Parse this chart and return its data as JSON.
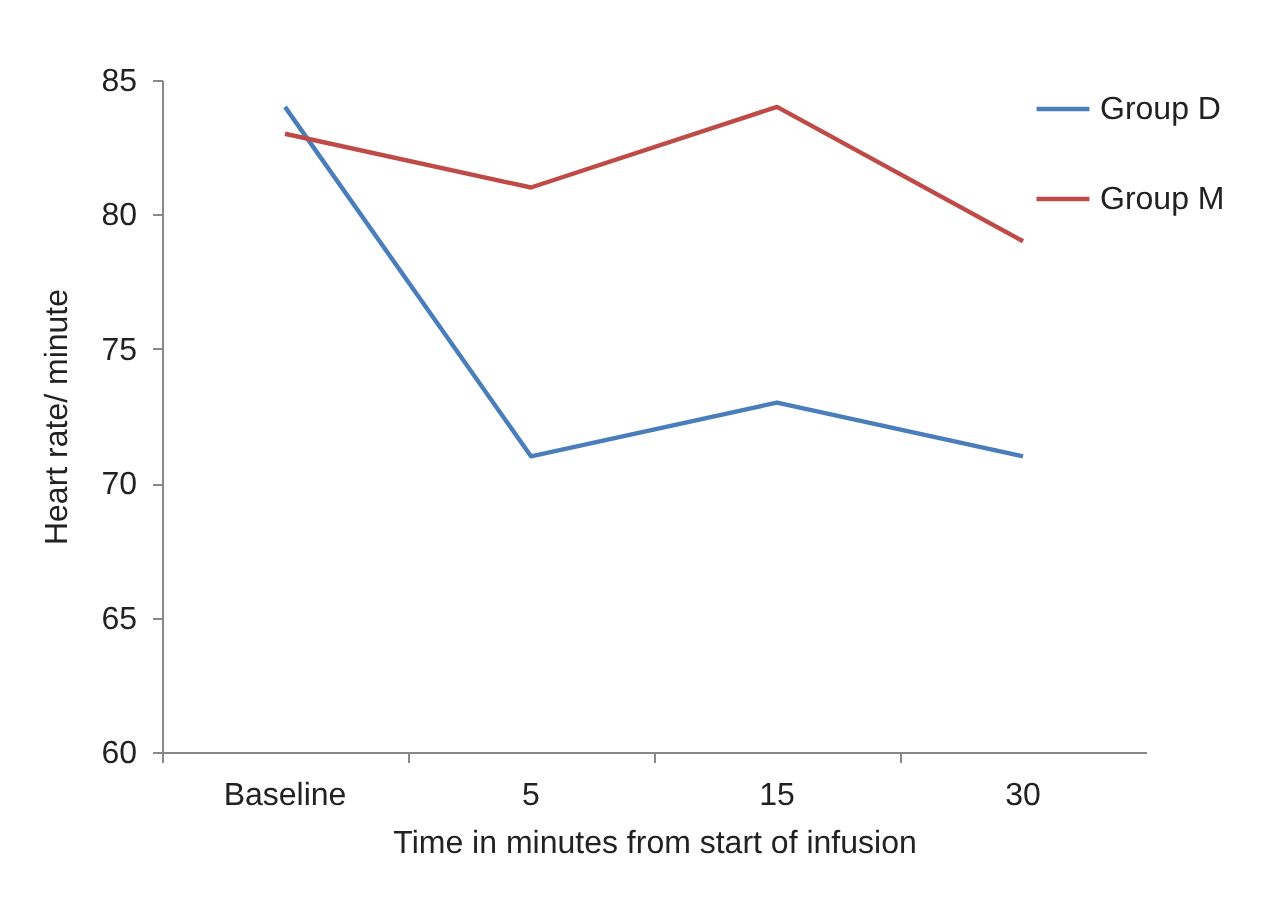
{
  "chart_data": {
    "type": "line",
    "xlabel": "Time in minutes from start of infusion",
    "ylabel": "Heart rate/ minute",
    "categories": [
      "Baseline",
      "5",
      "15",
      "30"
    ],
    "series": [
      {
        "name": "Group D",
        "color": "#4a7ebb",
        "values": [
          84,
          71,
          73,
          71
        ]
      },
      {
        "name": "Group M",
        "color": "#be4b48",
        "values": [
          83,
          81,
          84,
          79
        ]
      }
    ],
    "ylim": [
      60,
      85
    ],
    "yticks": [
      60,
      65,
      70,
      75,
      80,
      85
    ],
    "grid": false,
    "legend": "right",
    "marker": "none",
    "line_style": "solid"
  }
}
